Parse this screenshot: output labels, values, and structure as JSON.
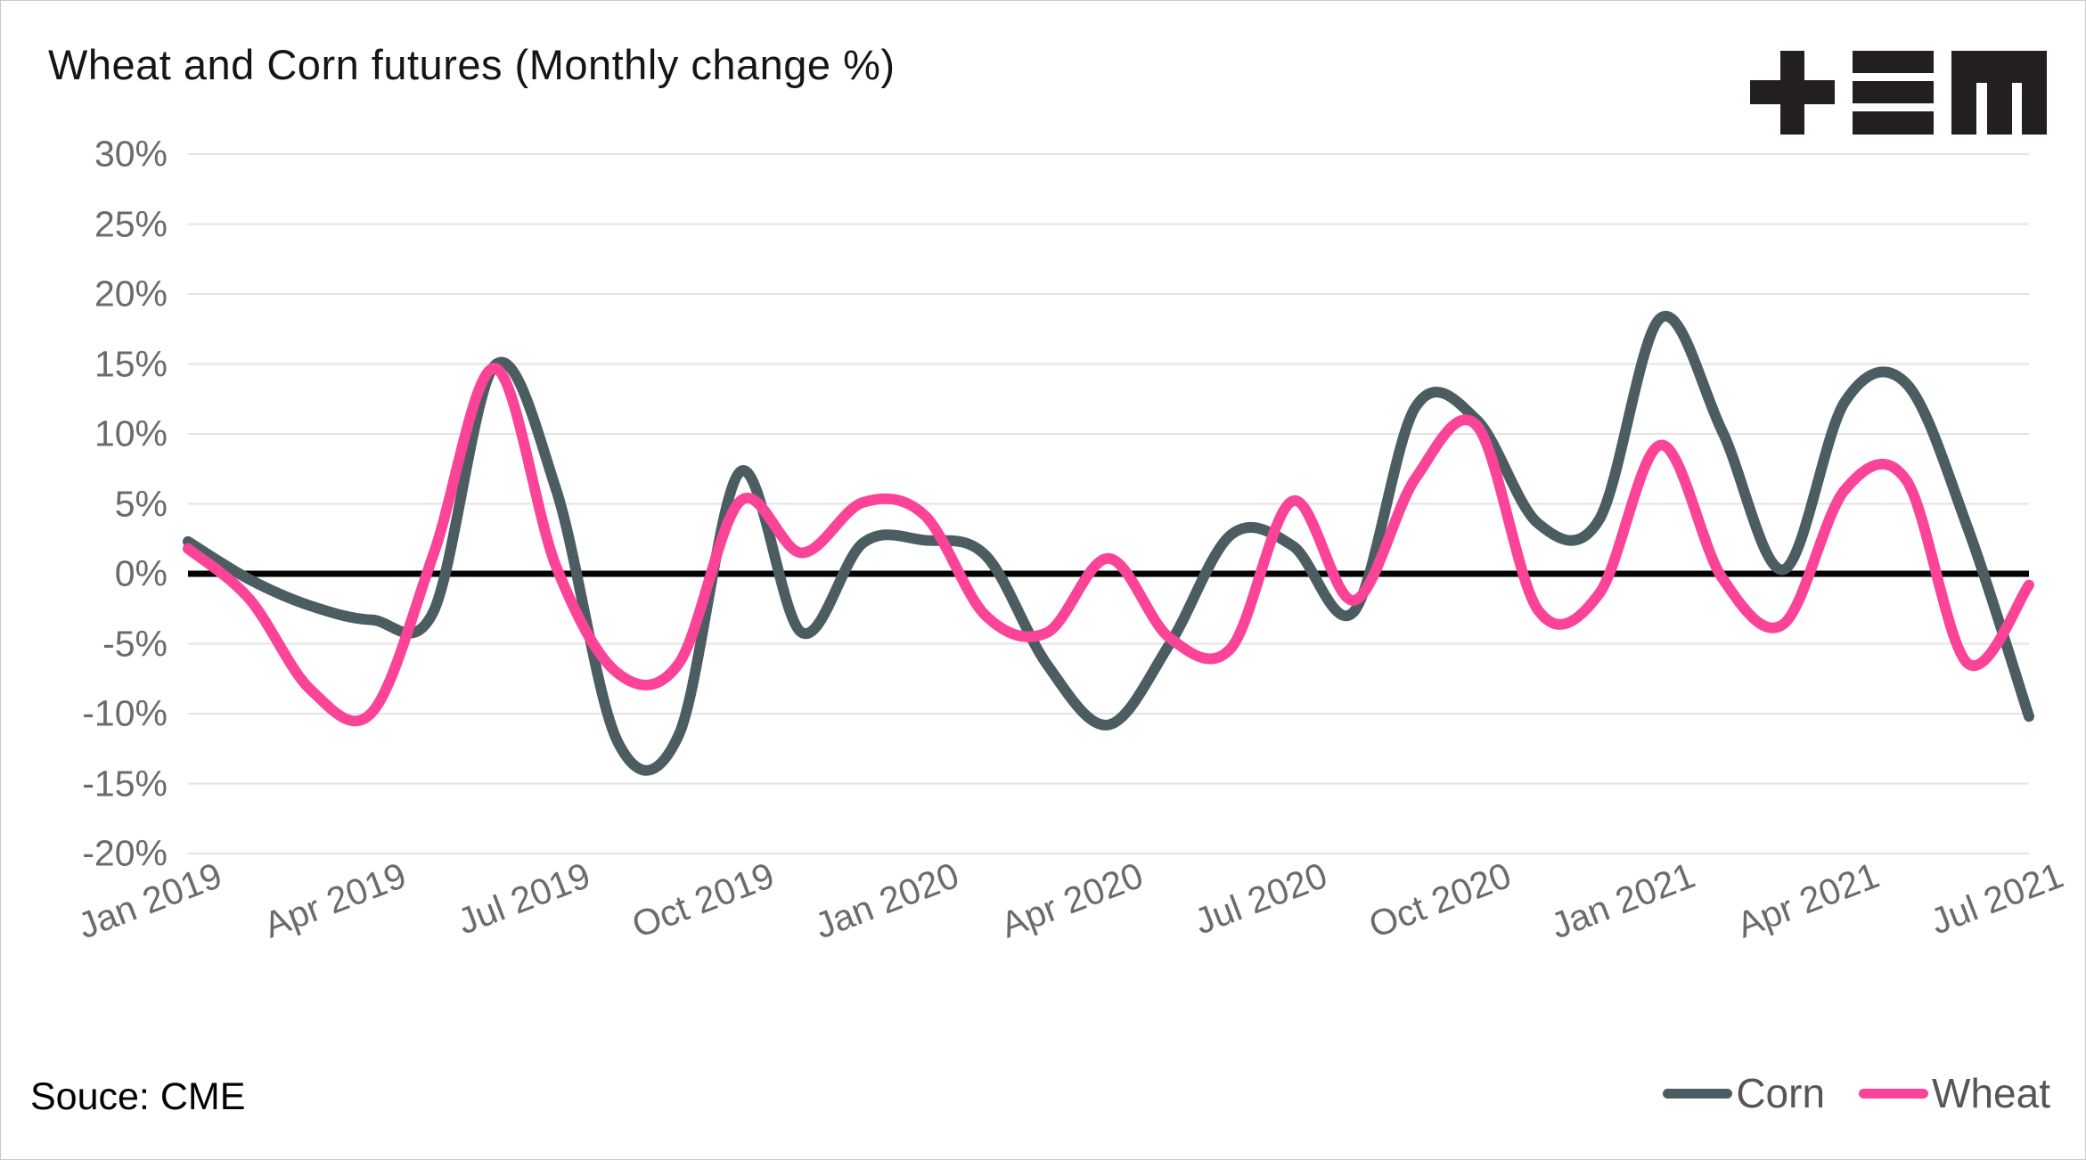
{
  "title": "Wheat and Corn futures (Monthly change %)",
  "logo": {
    "name": "trading-economics-logo"
  },
  "source": {
    "label": "Souce: CME"
  },
  "legend": {
    "items": [
      {
        "label": "Corn",
        "color": "#4b5d61"
      },
      {
        "label": "Wheat",
        "color": "#fb4497"
      }
    ]
  },
  "chart_data": {
    "type": "line",
    "title": "Wheat and Corn futures (Monthly change %)",
    "xlabel": "",
    "ylabel": "",
    "x": [
      "Jan 2019",
      "Feb 2019",
      "Mar 2019",
      "Apr 2019",
      "May 2019",
      "Jun 2019",
      "Jul 2019",
      "Aug 2019",
      "Sep 2019",
      "Oct 2019",
      "Nov 2019",
      "Dec 2019",
      "Jan 2020",
      "Feb 2020",
      "Mar 2020",
      "Apr 2020",
      "May 2020",
      "Jun 2020",
      "Jul 2020",
      "Aug 2020",
      "Sep 2020",
      "Oct 2020",
      "Nov 2020",
      "Dec 2020",
      "Jan 2021",
      "Feb 2021",
      "Mar 2021",
      "Apr 2021",
      "May 2021",
      "Jun 2021",
      "Jul 2021"
    ],
    "x_tick_every": 3,
    "x_tick_labels": [
      "Jan 2019",
      "Apr 2019",
      "Jul 2019",
      "Oct 2019",
      "Jan 2020",
      "Apr 2020",
      "Jul 2020",
      "Oct 2020",
      "Jan 2021",
      "Apr 2021",
      "Jul 2021"
    ],
    "series": [
      {
        "name": "Corn",
        "color": "#4b5d61",
        "values": [
          2.3,
          -0.4,
          -2.3,
          -3.3,
          -2.7,
          14.9,
          6.0,
          -12.0,
          -11.5,
          7.3,
          -4.2,
          2.2,
          2.4,
          1.3,
          -6.5,
          -10.8,
          -5.0,
          2.8,
          2.0,
          -2.7,
          11.9,
          11.0,
          3.6,
          3.9,
          18.3,
          10.2,
          0.3,
          12.3,
          13.6,
          3.3,
          -10.2
        ]
      },
      {
        "name": "Wheat",
        "color": "#fb4497",
        "values": [
          1.8,
          -1.8,
          -8.3,
          -9.9,
          1.4,
          14.7,
          0.5,
          -7.1,
          -6.4,
          5.2,
          1.5,
          5.1,
          4.2,
          -3.0,
          -4.2,
          1.1,
          -4.6,
          -5.3,
          5.2,
          -1.9,
          6.8,
          10.6,
          -2.6,
          -1.4,
          9.2,
          -0.3,
          -3.6,
          6.0,
          6.7,
          -6.4,
          -0.8
        ]
      }
    ],
    "y_ticks": [
      30,
      25,
      20,
      15,
      10,
      5,
      0,
      -5,
      -10,
      -15,
      -20
    ],
    "y_tick_labels": [
      "30%",
      "25%",
      "20%",
      "15%",
      "10%",
      "5%",
      "0%",
      "-5%",
      "-10%",
      "-15%",
      "-20%"
    ],
    "ylim": [
      -20,
      30
    ],
    "grid": "horizontal",
    "zero_line": true,
    "zero_line_color": "#000000",
    "gridline_color": "#e3e3e3",
    "legend_position": "bottom-right"
  }
}
